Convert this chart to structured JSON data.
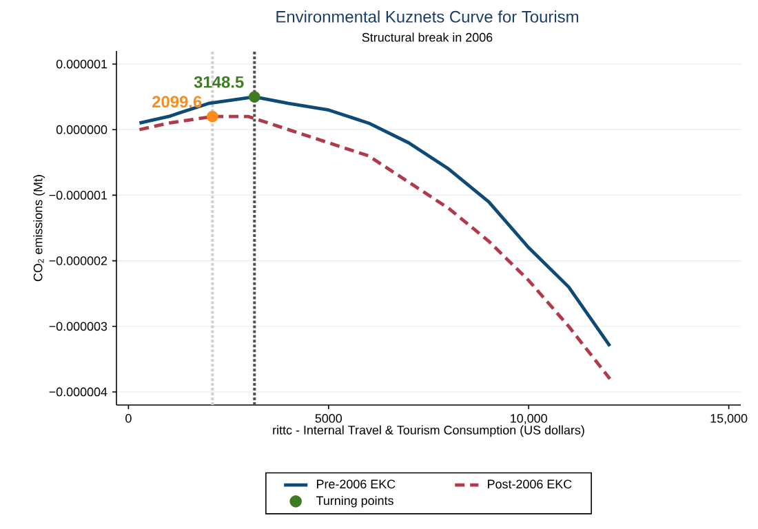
{
  "chart_data": {
    "type": "line",
    "title": "Environmental Kuznets Curve for Tourism",
    "subtitle": "Structural break in 2006",
    "xlabel": "rittc - Internal Travel & Tourism Consumption (US dollars)",
    "ylabel": "CO$_{2}$ emissions (Mt)",
    "xlim": [
      -300,
      15300
    ],
    "ylim": [
      -4.2e-06,
      1.2e-06
    ],
    "xticks": [
      0,
      5000,
      {
        "value": 10000,
        "label": "10,000"
      },
      {
        "value": 15000,
        "label": "15,000"
      }
    ],
    "yticks": [
      {
        "value": -4e-06,
        "label": "−0.000004"
      },
      {
        "value": -3e-06,
        "label": "−0.000003"
      },
      {
        "value": -2e-06,
        "label": "−0.000002"
      },
      {
        "value": -1e-06,
        "label": "−0.000001"
      },
      {
        "value": 0,
        "label": "0.000000"
      },
      {
        "value": 1e-06,
        "label": "0.000001"
      }
    ],
    "grid": "y",
    "legend": "bottom",
    "series": [
      {
        "name": "Pre-2006 EKC",
        "color": "#0e4a76",
        "line_style": "solid",
        "x": [
          275,
          1000,
          2000,
          3148.5,
          4000,
          5000,
          6000,
          7000,
          8000,
          9000,
          10000,
          11000,
          12030
        ],
        "values": [
          1e-07,
          2e-07,
          4e-07,
          5e-07,
          4e-07,
          3e-07,
          1e-07,
          -2e-07,
          -6e-07,
          -1.1e-06,
          -1.8e-06,
          -2.4e-06,
          -3.3e-06
        ]
      },
      {
        "name": "Post-2006 EKC",
        "color": "#b0394a",
        "line_style": "dashed",
        "x": [
          275,
          1000,
          2099.6,
          3000,
          4000,
          5000,
          6000,
          7000,
          8000,
          9000,
          10000,
          11000,
          12030
        ],
        "values": [
          0,
          1e-07,
          2e-07,
          2e-07,
          0,
          -2e-07,
          -4e-07,
          -8e-07,
          -1.2e-06,
          -1.7e-06,
          -2.3e-06,
          -3e-06,
          -3.8e-06
        ]
      },
      {
        "name": "Turning points",
        "type": "scatter",
        "color": "#3e7b22",
        "x": [
          3148.5
        ],
        "values": [
          5e-07
        ]
      },
      {
        "type": "scatter",
        "color": "#ff8a1c",
        "x": [
          2099.6
        ],
        "values": [
          2e-07
        ]
      }
    ],
    "ref_lines": [
      {
        "axis": "x",
        "value": 2099.6,
        "color": "#cfcfcf",
        "line_style": "dotted"
      },
      {
        "axis": "x",
        "value": 3148.5,
        "color": "#505050",
        "line_style": "dotted"
      }
    ],
    "annotations": [
      {
        "text": "3148.5",
        "x": 3148.5,
        "y": 5e-07
      },
      {
        "text": "2099.6",
        "x": 2099.6,
        "y": 2e-07
      }
    ]
  }
}
